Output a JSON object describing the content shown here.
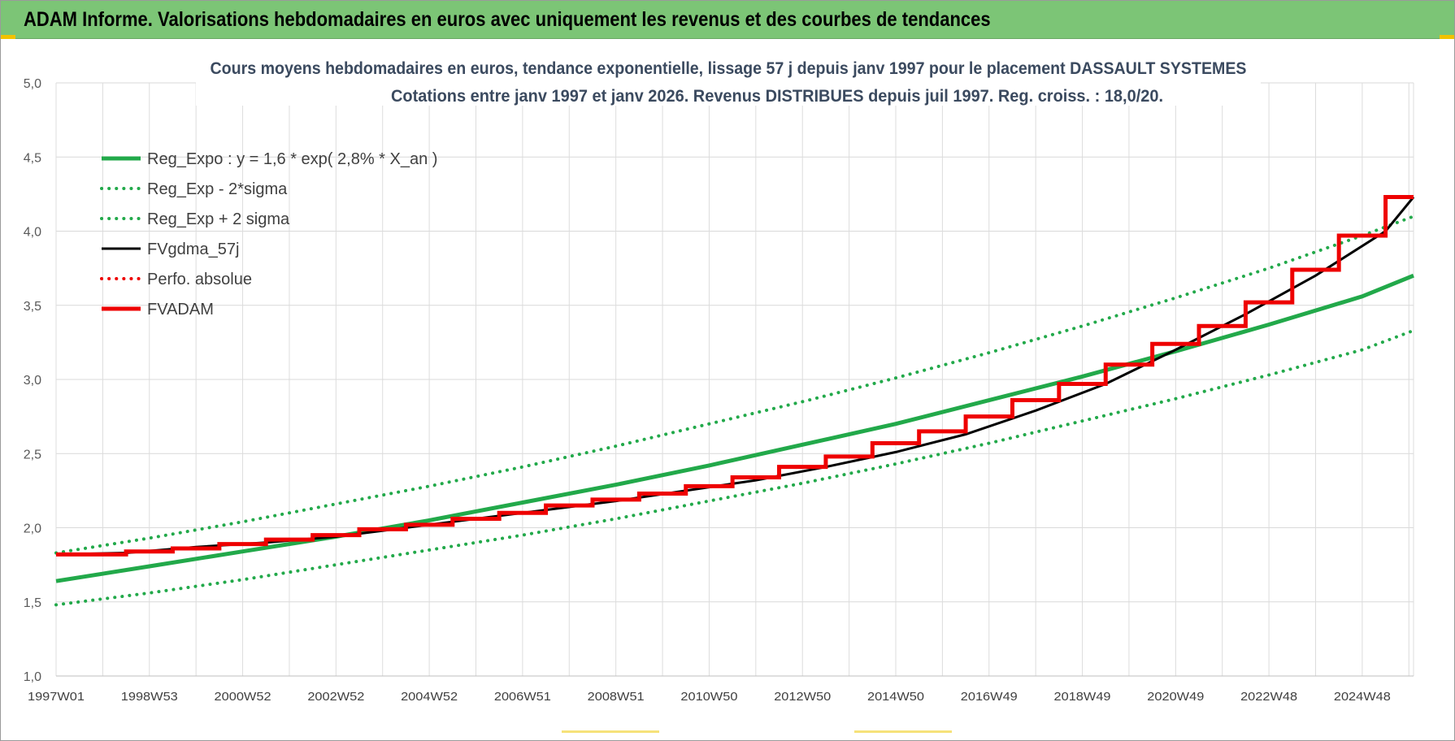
{
  "header": {
    "title": "ADAM Informe. Valorisations hebdomadaires en euros avec uniquement les revenus et des courbes de tendances"
  },
  "colors": {
    "header_bg": "#7cc576",
    "green": "#22a94a",
    "black": "#000000",
    "red": "#ee0000",
    "grid": "#d9d9d9"
  },
  "chart_data": {
    "type": "line",
    "title_lines": [
      "Cours moyens hebdomadaires en euros, tendance exponentielle, lissage 57 j depuis janv 1997 pour le placement DASSAULT SYSTEMES",
      "Cotations entre janv 1997 et janv 2026. Revenus DISTRIBUES depuis juil 1997. Reg. croiss. : 18,0/20."
    ],
    "xlabel": "",
    "ylabel": "",
    "ylim": [
      1.0,
      5.0
    ],
    "y_ticks": [
      "1,0",
      "1,5",
      "2,0",
      "2,5",
      "3,0",
      "3,5",
      "4,0",
      "4,5",
      "5,0"
    ],
    "x_range_years": [
      1997.0,
      2026.1
    ],
    "x_ticks": [
      {
        "label": "1997W01",
        "year": 1997.0
      },
      {
        "label": "1998W53",
        "year": 1999.0
      },
      {
        "label": "2000W52",
        "year": 2001.0
      },
      {
        "label": "2002W52",
        "year": 2003.0
      },
      {
        "label": "2004W52",
        "year": 2005.0
      },
      {
        "label": "2006W51",
        "year": 2007.0
      },
      {
        "label": "2008W51",
        "year": 2009.0
      },
      {
        "label": "2010W50",
        "year": 2011.0
      },
      {
        "label": "2012W50",
        "year": 2013.0
      },
      {
        "label": "2014W50",
        "year": 2015.0
      },
      {
        "label": "2016W49",
        "year": 2017.0
      },
      {
        "label": "2018W49",
        "year": 2019.0
      },
      {
        "label": "2020W49",
        "year": 2021.0
      },
      {
        "label": "2022W48",
        "year": 2023.0
      },
      {
        "label": "2024W48",
        "year": 2025.0
      }
    ],
    "grid": true,
    "legend_position": "top-left",
    "series": [
      {
        "name": "Reg_Expo : y = 1,6 * exp( 2,8% *  X_an )",
        "style": "solid",
        "color": "#22a94a",
        "x": [
          1997,
          1999,
          2001,
          2003,
          2005,
          2007,
          2009,
          2011,
          2013,
          2015,
          2017,
          2019,
          2021,
          2023,
          2025,
          2026.1
        ],
        "y": [
          1.64,
          1.74,
          1.84,
          1.94,
          2.05,
          2.17,
          2.29,
          2.42,
          2.56,
          2.7,
          2.86,
          3.02,
          3.19,
          3.37,
          3.56,
          3.7
        ]
      },
      {
        "name": "Reg_Exp - 2*sigma",
        "style": "dotted",
        "color": "#22a94a",
        "x": [
          1997,
          1999,
          2001,
          2003,
          2005,
          2007,
          2009,
          2011,
          2013,
          2015,
          2017,
          2019,
          2021,
          2023,
          2025,
          2026.1
        ],
        "y": [
          1.48,
          1.56,
          1.65,
          1.75,
          1.85,
          1.95,
          2.06,
          2.18,
          2.3,
          2.43,
          2.57,
          2.72,
          2.87,
          3.03,
          3.2,
          3.33
        ]
      },
      {
        "name": "Reg_Exp + 2 sigma",
        "style": "dotted",
        "color": "#22a94a",
        "x": [
          1997,
          1999,
          2001,
          2003,
          2005,
          2007,
          2009,
          2011,
          2013,
          2015,
          2017,
          2019,
          2021,
          2023,
          2025,
          2026.1
        ],
        "y": [
          1.83,
          1.93,
          2.04,
          2.16,
          2.28,
          2.41,
          2.55,
          2.7,
          2.85,
          3.01,
          3.18,
          3.36,
          3.55,
          3.75,
          3.97,
          4.1
        ]
      },
      {
        "name": "FVgdma_57j",
        "style": "solid",
        "color": "#000000",
        "x": [
          1997,
          1998.5,
          2000,
          2001.5,
          2003,
          2004.5,
          2006,
          2007.5,
          2009,
          2010.5,
          2012,
          2013.5,
          2015,
          2016.5,
          2018,
          2019.5,
          2021,
          2022.5,
          2024,
          2025.5,
          2026.1
        ],
        "y": [
          1.82,
          1.83,
          1.87,
          1.9,
          1.94,
          2.0,
          2.06,
          2.12,
          2.18,
          2.25,
          2.32,
          2.41,
          2.51,
          2.63,
          2.79,
          2.97,
          3.2,
          3.44,
          3.7,
          4.0,
          4.23
        ]
      },
      {
        "name": "Perfo. absolue",
        "style": "dotted",
        "color": "#ee0000",
        "x": [],
        "y": []
      },
      {
        "name": "FVADAM",
        "style": "step",
        "color": "#ee0000",
        "x": [
          1997.0,
          1998.5,
          1999.5,
          2000.5,
          2001.5,
          2002.5,
          2003.5,
          2004.5,
          2005.5,
          2006.5,
          2007.5,
          2008.5,
          2009.5,
          2010.5,
          2011.5,
          2012.5,
          2013.5,
          2014.5,
          2015.5,
          2016.5,
          2017.5,
          2018.5,
          2019.5,
          2020.5,
          2021.5,
          2022.5,
          2023.5,
          2024.5,
          2025.5,
          2026.1
        ],
        "y": [
          1.82,
          1.84,
          1.86,
          1.89,
          1.92,
          1.95,
          1.99,
          2.02,
          2.06,
          2.1,
          2.15,
          2.19,
          2.23,
          2.28,
          2.34,
          2.41,
          2.48,
          2.57,
          2.65,
          2.75,
          2.86,
          2.97,
          3.1,
          3.24,
          3.36,
          3.52,
          3.74,
          3.97,
          4.23,
          4.23
        ]
      }
    ]
  }
}
